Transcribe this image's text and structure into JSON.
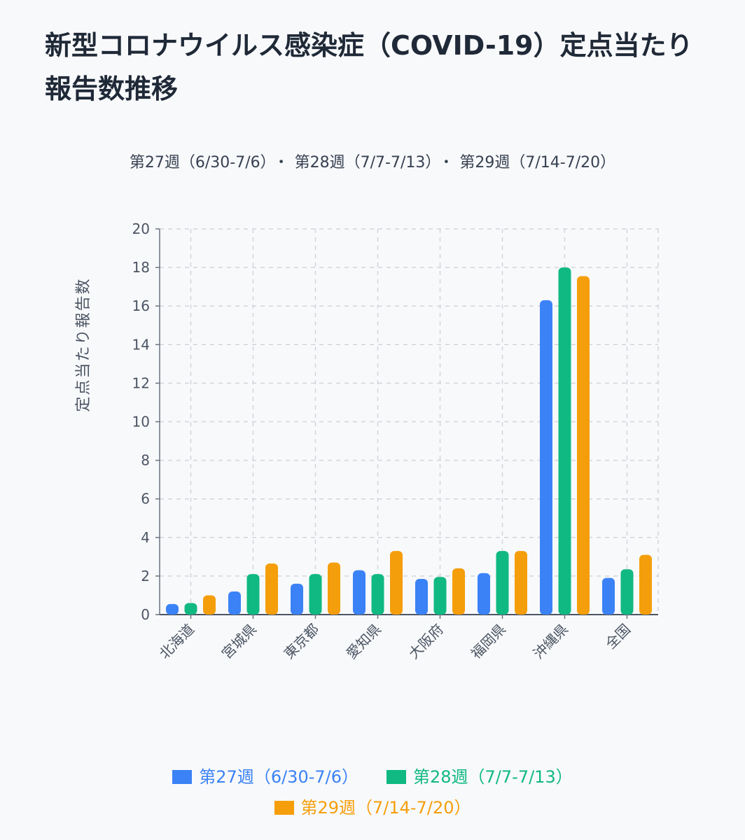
{
  "chart_data": {
    "type": "bar",
    "title": "新型コロナウイルス感染症（COVID-19）定点当たり報告数推移",
    "subtitle_parts": [
      "第27週（6/30-7/6）",
      "第28週（7/7-7/13）",
      "第29週（7/14-7/20）"
    ],
    "subtitle_separator": "・",
    "ylabel": "定点当たり報告数",
    "xlabel": "",
    "ylim": [
      0,
      20
    ],
    "yticks": [
      "0",
      "2",
      "4",
      "6",
      "8",
      "10",
      "12",
      "14",
      "16",
      "18",
      "20"
    ],
    "categories": [
      "北海道",
      "宮城県",
      "東京都",
      "愛知県",
      "大阪府",
      "福岡県",
      "沖縄県",
      "全国"
    ],
    "series": [
      {
        "name": "第27週（6/30-7/6）",
        "color": "#3b82f6",
        "values": [
          0.55,
          1.2,
          1.6,
          2.3,
          1.85,
          2.15,
          16.3,
          1.9
        ]
      },
      {
        "name": "第28週（7/7-7/13）",
        "color": "#10b981",
        "values": [
          0.6,
          2.1,
          2.1,
          2.1,
          1.95,
          3.3,
          18.0,
          2.35
        ]
      },
      {
        "name": "第29週（7/14-7/20）",
        "color": "#f59e0b",
        "values": [
          1.0,
          2.65,
          2.7,
          3.3,
          2.4,
          3.3,
          17.55,
          3.1
        ]
      }
    ],
    "grid": true,
    "legend_position": "bottom"
  }
}
